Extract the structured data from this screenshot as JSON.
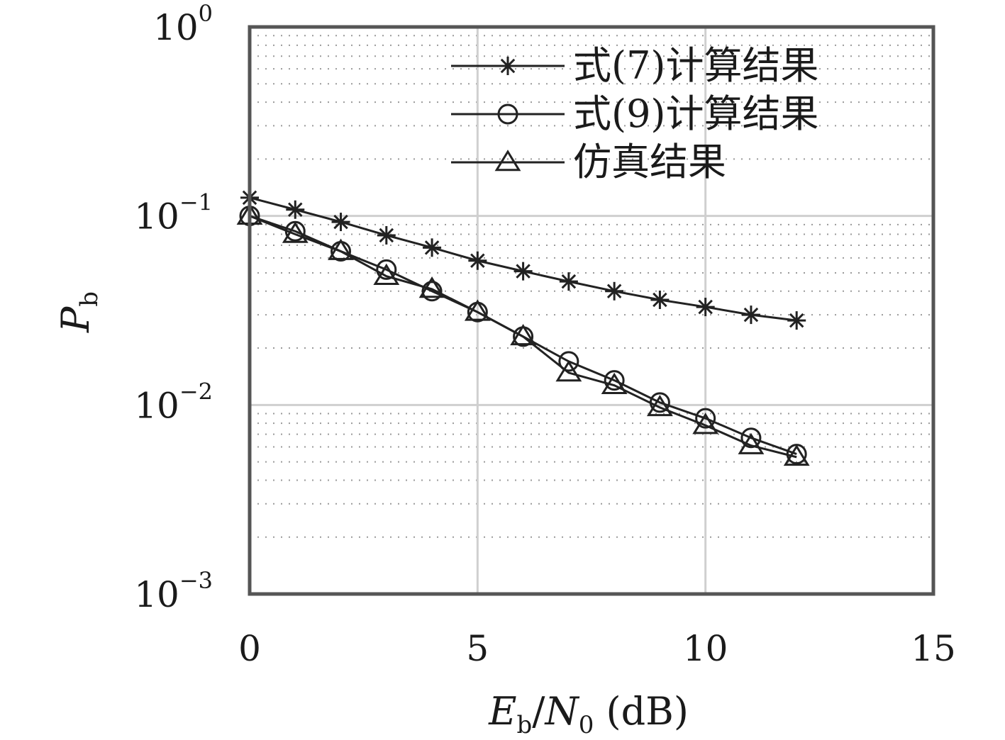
{
  "chart_data": {
    "type": "line",
    "title": "",
    "xlabel": {
      "base": "E",
      "base_sub": "b",
      "sep": "/",
      "base2": "N",
      "base2_sub": "0",
      "unit": " (dB)"
    },
    "ylabel": {
      "base": "P",
      "sub": "b"
    },
    "xlim": [
      0,
      15
    ],
    "ylim": [
      0.001,
      1
    ],
    "yscale": "log",
    "grid": true,
    "legend_position": "top-right",
    "x_ticks": [
      "0",
      "5",
      "10",
      "15"
    ],
    "y_ticks": [
      {
        "base": "10",
        "exp": "0"
      },
      {
        "base": "10",
        "exp": "−1"
      },
      {
        "base": "10",
        "exp": "−2"
      },
      {
        "base": "10",
        "exp": "−3"
      }
    ],
    "x": [
      0,
      1,
      2,
      3,
      4,
      5,
      6,
      7,
      8,
      9,
      10,
      11,
      12
    ],
    "series": [
      {
        "name": "式(7)计算结果",
        "marker": "star",
        "values": [
          0.125,
          0.108,
          0.093,
          0.079,
          0.068,
          0.058,
          0.051,
          0.045,
          0.04,
          0.036,
          0.033,
          0.03,
          0.028
        ]
      },
      {
        "name": "式(9)计算结果",
        "marker": "circle",
        "values": [
          0.1,
          0.083,
          0.065,
          0.052,
          0.04,
          0.031,
          0.023,
          0.017,
          0.0135,
          0.0103,
          0.0085,
          0.0067,
          0.0055
        ]
      },
      {
        "name": "仿真结果",
        "marker": "triangle",
        "values": [
          0.1,
          0.08,
          0.065,
          0.048,
          0.041,
          0.031,
          0.023,
          0.0148,
          0.0127,
          0.0097,
          0.0078,
          0.0061,
          0.0053
        ]
      }
    ]
  },
  "colors": {
    "line": "#222222",
    "frame": "#555555",
    "grid_major": "#cfcfcf",
    "grid_minor": "#9a9a9a"
  }
}
